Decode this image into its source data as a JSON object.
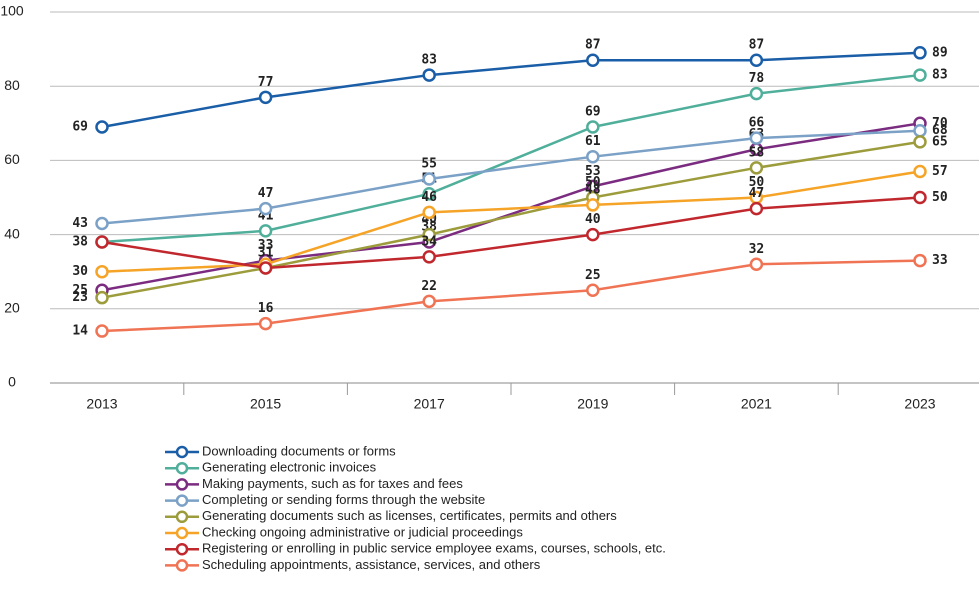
{
  "chart_data": {
    "type": "line",
    "categories": [
      "2013",
      "2015",
      "2017",
      "2019",
      "2021",
      "2023"
    ],
    "ylim": [
      0,
      100
    ],
    "yticks": [
      0,
      20,
      40,
      60,
      80,
      100
    ],
    "grid": true,
    "series": [
      {
        "name": "Downloading documents or forms",
        "color": "#1a5ea8",
        "values": [
          69,
          77,
          83,
          87,
          87,
          89
        ],
        "value_labels": [
          "69",
          "77",
          "83",
          "87",
          "87",
          "89"
        ]
      },
      {
        "name": "Generating electronic invoices",
        "color": "#4faf9b",
        "values": [
          38,
          41,
          51,
          69,
          78,
          83
        ],
        "value_labels": [
          "38",
          "41",
          "51",
          "69",
          "78",
          "83"
        ]
      },
      {
        "name": "Making payments, such as for taxes and fees",
        "color": "#7b2c80",
        "values": [
          25,
          33,
          38,
          53,
          63,
          70
        ],
        "value_labels": [
          "25",
          "33",
          "38",
          "53",
          "63",
          "70"
        ]
      },
      {
        "name": "Completing or sending forms through the website",
        "color": "#7ba1c7",
        "values": [
          43,
          47,
          55,
          61,
          66,
          68
        ],
        "value_labels": [
          "43",
          "47",
          "55",
          "61",
          "66",
          "68"
        ]
      },
      {
        "name": "Generating documents such as licenses, certificates, permits and others",
        "color": "#9c9c3c",
        "values": [
          23,
          31,
          40,
          50,
          58,
          65
        ],
        "value_labels": [
          "23",
          null,
          "40",
          "50",
          "58",
          "65"
        ]
      },
      {
        "name": "Checking ongoing administrative or judicial proceedings",
        "color": "#f5a428",
        "values": [
          30,
          32,
          46,
          48,
          50,
          57
        ],
        "value_labels": [
          "30",
          null,
          "46",
          "48",
          "50",
          "57"
        ]
      },
      {
        "name": "Registering or enrolling in public service employee exams, courses, schools, etc.",
        "color": "#c1282e",
        "values": [
          38,
          31,
          34,
          40,
          47,
          50
        ],
        "value_labels": [
          null,
          "31",
          "34",
          "40",
          "47",
          "50"
        ]
      },
      {
        "name": "Scheduling appointments, assistance, services, and others",
        "color": "#f07354",
        "values": [
          14,
          16,
          22,
          25,
          32,
          33
        ],
        "value_labels": [
          "14",
          "16",
          "22",
          "25",
          "32",
          "33"
        ]
      }
    ]
  }
}
